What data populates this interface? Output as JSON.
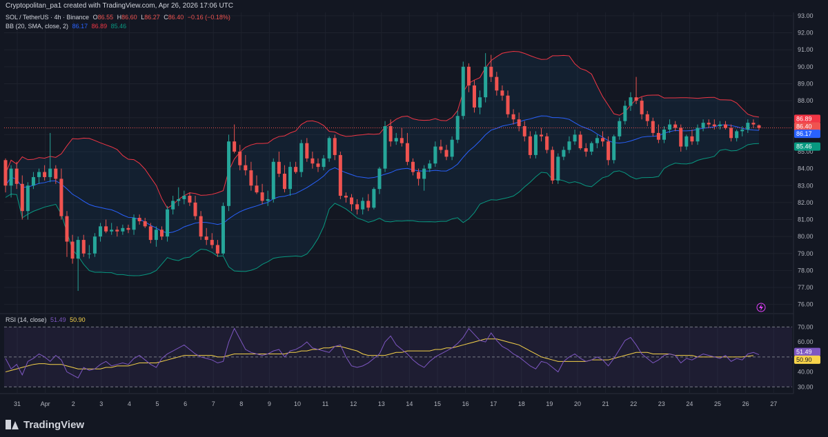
{
  "header": {
    "credit": "Cryptopolitan_pa1 created with TradingView.com, Apr 26, 2026 17:06 UTC"
  },
  "legend": {
    "symbol": "SOL / TetherUS · 4h · Binance",
    "o_label": "O",
    "o": "86.55",
    "h_label": "H",
    "h": "86.60",
    "l_label": "L",
    "l": "86.27",
    "c_label": "C",
    "c": "86.40",
    "change": "−0.16 (−0.18%)",
    "bb_label": "BB (20, SMA, close, 2)",
    "bb_basis": "86.17",
    "bb_upper": "86.89",
    "bb_lower": "85.46"
  },
  "rsi_legend": {
    "label": "RSI (14, close)",
    "rsi": "51.49",
    "rsi_ma": "50.90"
  },
  "brand": "TradingView",
  "colors": {
    "background": "#131722",
    "up": "#26a69a",
    "down": "#ef5350",
    "bb_basis": "#2962ff",
    "bb_upper": "#f23645",
    "bb_lower": "#089981",
    "rsi": "#7e57c2",
    "rsi_ma": "#f7d34a",
    "text": "#d1d4dc",
    "grid": "#1e222d"
  },
  "price_badges": {
    "upper": "86.89",
    "last": "86.40",
    "countdown": "02:53:09",
    "basis": "86.17",
    "lower": "85.46"
  },
  "rsi_badges": {
    "rsi": "51.49",
    "rsi_ma": "50.90"
  },
  "chart_data": [
    {
      "type": "candlestick",
      "title": "SOL / TetherUS · 4h · Binance",
      "ylim": [
        75.5,
        93.2
      ],
      "y_ticks": [
        "76.00",
        "77.00",
        "78.00",
        "79.00",
        "80.00",
        "81.00",
        "82.00",
        "83.00",
        "84.00",
        "85.00",
        "86.00",
        "87.00",
        "88.00",
        "89.00",
        "90.00",
        "91.00",
        "92.00",
        "93.00"
      ],
      "x_ticks": [
        "31",
        "Apr",
        "2",
        "3",
        "4",
        "5",
        "6",
        "7",
        "8",
        "9",
        "10",
        "11",
        "12",
        "13",
        "14",
        "15",
        "16",
        "17",
        "18",
        "19",
        "20",
        "21",
        "22",
        "23",
        "24",
        "25",
        "26",
        "27"
      ],
      "candles": [
        [
          84.5,
          84.6,
          82.6,
          83.0
        ],
        [
          83.0,
          84.2,
          82.3,
          84.0
        ],
        [
          84.0,
          84.4,
          82.8,
          83.1
        ],
        [
          83.1,
          83.6,
          81.0,
          81.5
        ],
        [
          81.5,
          83.2,
          81.0,
          83.0
        ],
        [
          83.0,
          83.8,
          82.8,
          83.5
        ],
        [
          83.5,
          84.0,
          83.1,
          83.8
        ],
        [
          83.8,
          84.2,
          83.3,
          83.5
        ],
        [
          83.5,
          86.1,
          83.2,
          84.0
        ],
        [
          84.0,
          84.2,
          83.1,
          83.4
        ],
        [
          83.4,
          84.0,
          81.0,
          81.2
        ],
        [
          81.2,
          81.5,
          78.8,
          79.7
        ],
        [
          79.7,
          80.1,
          78.4,
          78.7
        ],
        [
          78.7,
          80.0,
          76.8,
          79.8
        ],
        [
          79.8,
          80.1,
          78.8,
          79.0
        ],
        [
          79.0,
          79.5,
          78.7,
          79.0
        ],
        [
          79.0,
          80.2,
          78.8,
          80.0
        ],
        [
          80.0,
          80.8,
          79.7,
          80.6
        ],
        [
          80.6,
          81.0,
          80.2,
          80.3
        ],
        [
          80.3,
          80.8,
          80.1,
          80.4
        ],
        [
          80.4,
          80.6,
          80.0,
          80.3
        ],
        [
          80.3,
          80.7,
          80.1,
          80.5
        ],
        [
          80.5,
          80.7,
          80.2,
          80.4
        ],
        [
          80.4,
          81.3,
          80.1,
          81.1
        ],
        [
          81.1,
          81.3,
          80.7,
          80.9
        ],
        [
          80.9,
          81.1,
          80.5,
          80.6
        ],
        [
          80.6,
          80.8,
          79.6,
          79.8
        ],
        [
          79.8,
          80.6,
          79.4,
          80.4
        ],
        [
          80.4,
          80.6,
          79.8,
          80.0
        ],
        [
          80.0,
          81.8,
          79.7,
          81.6
        ],
        [
          81.6,
          82.4,
          81.3,
          82.1
        ],
        [
          82.1,
          82.9,
          81.8,
          82.2
        ],
        [
          82.2,
          82.7,
          81.9,
          82.4
        ],
        [
          82.4,
          82.6,
          81.8,
          82.0
        ],
        [
          82.0,
          82.4,
          81.0,
          81.2
        ],
        [
          81.2,
          81.5,
          79.8,
          80.0
        ],
        [
          80.0,
          80.5,
          79.5,
          79.8
        ],
        [
          79.8,
          80.2,
          79.3,
          79.5
        ],
        [
          79.5,
          79.8,
          78.8,
          79.0
        ],
        [
          79.0,
          82.0,
          78.9,
          81.8
        ],
        [
          81.8,
          86.0,
          81.5,
          85.6
        ],
        [
          85.6,
          86.6,
          84.9,
          85.0
        ],
        [
          85.0,
          85.4,
          83.9,
          84.2
        ],
        [
          84.2,
          84.8,
          83.6,
          83.9
        ],
        [
          83.9,
          84.4,
          82.7,
          83.0
        ],
        [
          83.0,
          83.6,
          82.5,
          82.6
        ],
        [
          82.6,
          83.1,
          81.9,
          82.1
        ],
        [
          82.1,
          82.7,
          81.8,
          82.2
        ],
        [
          82.2,
          84.6,
          82.0,
          84.4
        ],
        [
          84.4,
          85.0,
          83.5,
          83.7
        ],
        [
          83.7,
          84.2,
          82.6,
          82.8
        ],
        [
          82.8,
          84.4,
          82.4,
          84.1
        ],
        [
          84.1,
          84.4,
          83.7,
          83.8
        ],
        [
          83.8,
          85.7,
          83.5,
          85.5
        ],
        [
          85.5,
          85.8,
          84.4,
          84.6
        ],
        [
          84.6,
          85.0,
          84.0,
          84.3
        ],
        [
          84.3,
          84.6,
          83.8,
          84.1
        ],
        [
          84.1,
          84.8,
          83.9,
          84.6
        ],
        [
          84.6,
          85.9,
          84.4,
          85.8
        ],
        [
          85.8,
          86.0,
          84.5,
          84.8
        ],
        [
          84.8,
          85.0,
          82.2,
          82.4
        ],
        [
          82.4,
          82.6,
          82.0,
          82.3
        ],
        [
          82.3,
          82.5,
          81.5,
          81.9
        ],
        [
          81.9,
          82.2,
          81.3,
          81.6
        ],
        [
          81.6,
          82.3,
          81.3,
          82.1
        ],
        [
          82.1,
          82.5,
          81.5,
          81.7
        ],
        [
          81.7,
          82.9,
          81.6,
          82.8
        ],
        [
          82.8,
          84.1,
          82.5,
          84.0
        ],
        [
          84.0,
          86.8,
          83.8,
          86.5
        ],
        [
          86.5,
          86.9,
          85.3,
          85.6
        ],
        [
          85.6,
          86.1,
          85.4,
          85.8
        ],
        [
          85.8,
          86.4,
          85.3,
          85.5
        ],
        [
          85.5,
          86.1,
          84.2,
          84.4
        ],
        [
          84.4,
          84.6,
          83.6,
          83.8
        ],
        [
          83.8,
          84.0,
          83.0,
          83.4
        ],
        [
          83.4,
          84.2,
          82.7,
          84.0
        ],
        [
          84.0,
          84.5,
          83.8,
          84.3
        ],
        [
          84.3,
          85.6,
          84.1,
          85.3
        ],
        [
          85.3,
          85.7,
          84.9,
          85.1
        ],
        [
          85.1,
          85.4,
          84.5,
          84.7
        ],
        [
          84.7,
          85.9,
          84.5,
          85.7
        ],
        [
          85.7,
          87.4,
          85.5,
          87.1
        ],
        [
          87.1,
          90.3,
          86.9,
          90.0
        ],
        [
          90.0,
          90.2,
          88.5,
          88.9
        ],
        [
          88.9,
          89.2,
          87.3,
          87.6
        ],
        [
          87.6,
          88.6,
          87.2,
          88.2
        ],
        [
          88.2,
          90.8,
          87.9,
          90.0
        ],
        [
          90.0,
          90.7,
          89.1,
          89.4
        ],
        [
          89.4,
          89.7,
          88.3,
          88.6
        ],
        [
          88.6,
          88.9,
          88.0,
          88.3
        ],
        [
          88.3,
          88.6,
          87.0,
          87.2
        ],
        [
          87.2,
          87.5,
          86.6,
          86.9
        ],
        [
          86.9,
          87.3,
          86.2,
          86.5
        ],
        [
          86.5,
          86.8,
          85.6,
          85.9
        ],
        [
          85.9,
          86.2,
          84.6,
          84.8
        ],
        [
          84.8,
          86.2,
          84.6,
          86.0
        ],
        [
          86.0,
          86.4,
          85.6,
          85.9
        ],
        [
          85.9,
          86.1,
          84.9,
          85.1
        ],
        [
          85.1,
          85.3,
          83.1,
          83.3
        ],
        [
          83.3,
          84.9,
          83.1,
          84.7
        ],
        [
          84.7,
          85.3,
          84.5,
          85.1
        ],
        [
          85.1,
          85.9,
          84.9,
          85.6
        ],
        [
          85.6,
          86.3,
          85.4,
          86.0
        ],
        [
          86.0,
          86.2,
          85.1,
          85.2
        ],
        [
          85.2,
          85.5,
          84.7,
          85.0
        ],
        [
          85.0,
          85.6,
          84.8,
          85.5
        ],
        [
          85.5,
          86.0,
          85.2,
          85.8
        ],
        [
          85.8,
          86.2,
          85.3,
          85.6
        ],
        [
          85.6,
          85.9,
          84.2,
          84.5
        ],
        [
          84.5,
          86.0,
          84.3,
          85.9
        ],
        [
          85.9,
          87.0,
          85.7,
          86.8
        ],
        [
          86.8,
          88.0,
          86.6,
          87.7
        ],
        [
          87.7,
          88.5,
          87.4,
          88.2
        ],
        [
          88.2,
          89.4,
          87.8,
          88.0
        ],
        [
          88.0,
          88.2,
          86.9,
          87.2
        ],
        [
          87.2,
          87.4,
          86.5,
          86.8
        ],
        [
          86.8,
          87.0,
          85.9,
          86.1
        ],
        [
          86.1,
          86.6,
          85.5,
          85.7
        ],
        [
          85.7,
          86.5,
          85.5,
          86.3
        ],
        [
          86.3,
          86.9,
          86.1,
          86.6
        ],
        [
          86.6,
          86.8,
          86.2,
          86.4
        ],
        [
          86.4,
          86.6,
          85.0,
          85.3
        ],
        [
          85.3,
          86.0,
          85.1,
          85.9
        ],
        [
          85.9,
          86.3,
          85.4,
          85.6
        ],
        [
          85.6,
          86.6,
          85.4,
          86.4
        ],
        [
          86.4,
          86.9,
          86.2,
          86.7
        ],
        [
          86.7,
          86.9,
          86.4,
          86.6
        ],
        [
          86.6,
          86.9,
          86.3,
          86.5
        ],
        [
          86.5,
          86.8,
          86.3,
          86.6
        ],
        [
          86.6,
          86.8,
          86.3,
          86.4
        ],
        [
          86.4,
          86.6,
          85.6,
          85.8
        ],
        [
          85.8,
          86.3,
          85.6,
          86.2
        ],
        [
          86.2,
          86.5,
          85.9,
          86.3
        ],
        [
          86.3,
          86.9,
          86.1,
          86.7
        ],
        [
          86.7,
          86.9,
          86.4,
          86.6
        ],
        [
          86.55,
          86.6,
          86.27,
          86.4
        ]
      ]
    },
    {
      "type": "line",
      "title": "RSI (14, close)",
      "ylim": [
        26,
        72
      ],
      "y_ticks": [
        "30.00",
        "40.00",
        "50.00",
        "60.00",
        "70.00"
      ],
      "bands": [
        30,
        50,
        70
      ],
      "series": [
        {
          "name": "RSI",
          "values": [
            49,
            42,
            45,
            38,
            47,
            49,
            52,
            50,
            47,
            51,
            48,
            40,
            38,
            36,
            43,
            41,
            42,
            45,
            47,
            44,
            45,
            46,
            45,
            49,
            51,
            48,
            45,
            43,
            49,
            52,
            54,
            56,
            58,
            55,
            52,
            50,
            49,
            48,
            46,
            47,
            60,
            69,
            62,
            55,
            53,
            52,
            51,
            52,
            54,
            55,
            50,
            54,
            55,
            57,
            60,
            56,
            55,
            54,
            53,
            57,
            58,
            50,
            44,
            43,
            44,
            46,
            49,
            52,
            60,
            64,
            58,
            55,
            52,
            48,
            45,
            43,
            47,
            50,
            52,
            54,
            56,
            59,
            63,
            69,
            65,
            61,
            60,
            66,
            61,
            57,
            55,
            52,
            50,
            47,
            44,
            42,
            47,
            46,
            43,
            40,
            47,
            50,
            52,
            49,
            47,
            48,
            50,
            48,
            44,
            49,
            55,
            61,
            63,
            58,
            52,
            49,
            46,
            48,
            51,
            52,
            51,
            46,
            49,
            48,
            50,
            52,
            51,
            50,
            49,
            51,
            47,
            49,
            48,
            52,
            53,
            51.49
          ]
        },
        {
          "name": "RSI-based MA",
          "values": [
            40,
            41,
            42,
            43,
            44,
            45,
            45.5,
            45.5,
            45,
            45,
            45,
            44,
            43,
            42,
            42,
            42,
            42,
            42,
            43,
            43,
            44,
            44,
            44,
            45,
            46,
            46,
            46,
            46,
            47,
            48,
            49,
            50,
            51,
            51,
            51,
            51,
            51,
            51,
            50,
            50,
            51,
            52,
            52,
            52,
            52,
            52,
            52,
            52,
            52,
            52,
            52,
            53,
            53,
            54,
            54,
            55,
            55,
            56,
            56,
            57,
            57,
            56,
            55,
            54,
            52,
            51,
            51,
            51,
            51,
            52,
            53,
            53,
            54,
            54,
            54,
            54,
            54,
            55,
            55,
            56,
            56,
            57,
            58,
            59,
            60,
            61,
            62,
            62,
            62,
            61,
            60,
            59,
            58,
            56,
            54,
            52,
            50,
            49,
            48,
            47,
            47,
            47,
            47,
            47,
            47,
            48,
            48,
            48,
            48,
            49,
            50,
            51,
            52,
            53,
            53,
            53,
            52,
            52,
            52,
            52,
            51,
            51,
            51,
            51,
            50,
            50,
            50,
            50,
            50,
            50,
            50,
            50,
            50,
            50.5,
            50.9
          ]
        }
      ]
    }
  ]
}
